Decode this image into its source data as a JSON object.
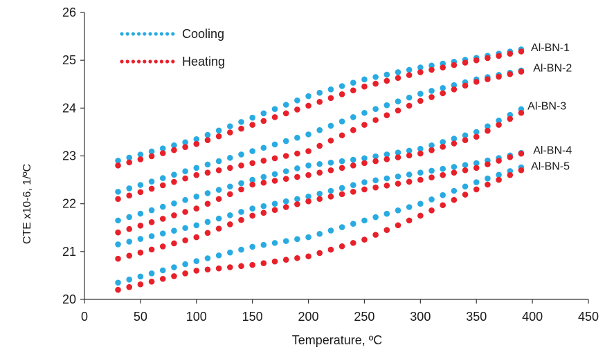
{
  "chart_data": {
    "type": "scatter",
    "title": "",
    "xlabel": "Temperature, ºC",
    "ylabel": "CTE x10-6, 1/ºC",
    "xlim": [
      0,
      450
    ],
    "ylim": [
      20,
      26
    ],
    "x_ticks": [
      "0",
      "50",
      "100",
      "150",
      "200",
      "250",
      "300",
      "350",
      "400",
      "450"
    ],
    "y_ticks": [
      "20",
      "21",
      "22",
      "23",
      "24",
      "25",
      "26"
    ],
    "grid": false,
    "legend": {
      "placement": "top-left",
      "entries": [
        "Cooling",
        "Heating"
      ]
    },
    "colors": {
      "Cooling": "#29abe2",
      "Heating": "#e8202a",
      "axis": "#333333"
    },
    "annotations": [
      "Al-BN-1",
      "Al-BN-2",
      "Al-BN-3",
      "Al-BN-4",
      "Al-BN-5"
    ],
    "series": [
      {
        "name": "Cooling",
        "sample": "Al-BN-1",
        "x": [
          30,
          100,
          150,
          200,
          250,
          300,
          350,
          395
        ],
        "y": [
          22.9,
          23.35,
          23.8,
          24.25,
          24.6,
          24.85,
          25.05,
          25.25
        ]
      },
      {
        "name": "Heating",
        "sample": "Al-BN-1",
        "x": [
          30,
          100,
          150,
          200,
          250,
          300,
          350,
          398
        ],
        "y": [
          22.8,
          23.25,
          23.65,
          24.05,
          24.45,
          24.75,
          25.0,
          25.22
        ]
      },
      {
        "name": "Cooling",
        "sample": "Al-BN-2",
        "x": [
          30,
          100,
          150,
          200,
          250,
          300,
          350,
          397
        ],
        "y": [
          22.25,
          22.75,
          23.1,
          23.45,
          23.9,
          24.3,
          24.6,
          24.82
        ]
      },
      {
        "name": "Heating",
        "sample": "Al-BN-2",
        "x": [
          30,
          100,
          150,
          200,
          250,
          300,
          350,
          397
        ],
        "y": [
          22.1,
          22.6,
          22.85,
          23.1,
          23.65,
          24.15,
          24.55,
          24.8
        ]
      },
      {
        "name": "Cooling",
        "sample": "Al-BN-3",
        "x": [
          30,
          100,
          150,
          200,
          250,
          300,
          350,
          392
        ],
        "y": [
          21.65,
          22.15,
          22.5,
          22.8,
          22.95,
          23.15,
          23.5,
          24.0
        ]
      },
      {
        "name": "Heating",
        "sample": "Al-BN-3",
        "x": [
          30,
          100,
          150,
          200,
          250,
          300,
          350,
          390
        ],
        "y": [
          21.4,
          21.9,
          22.4,
          22.6,
          22.85,
          23.05,
          23.4,
          23.9
        ]
      },
      {
        "name": "Cooling",
        "sample": "Al-BN-4",
        "x": [
          30,
          100,
          150,
          200,
          250,
          300,
          350,
          397
        ],
        "y": [
          21.15,
          21.55,
          21.9,
          22.15,
          22.45,
          22.65,
          22.85,
          23.1
        ]
      },
      {
        "name": "Heating",
        "sample": "Al-BN-4",
        "x": [
          30,
          100,
          150,
          200,
          250,
          300,
          350,
          397
        ],
        "y": [
          20.85,
          21.3,
          21.75,
          22.05,
          22.3,
          22.5,
          22.75,
          23.1
        ]
      },
      {
        "name": "Cooling",
        "sample": "Al-BN-5",
        "x": [
          30,
          100,
          150,
          200,
          250,
          300,
          350,
          395
        ],
        "y": [
          20.35,
          20.8,
          21.1,
          21.3,
          21.65,
          22.0,
          22.45,
          22.8
        ]
      },
      {
        "name": "Heating",
        "sample": "Al-BN-5",
        "x": [
          30,
          100,
          150,
          200,
          250,
          300,
          350,
          398
        ],
        "y": [
          20.2,
          20.6,
          20.72,
          20.9,
          21.25,
          21.75,
          22.3,
          22.78
        ]
      }
    ]
  }
}
